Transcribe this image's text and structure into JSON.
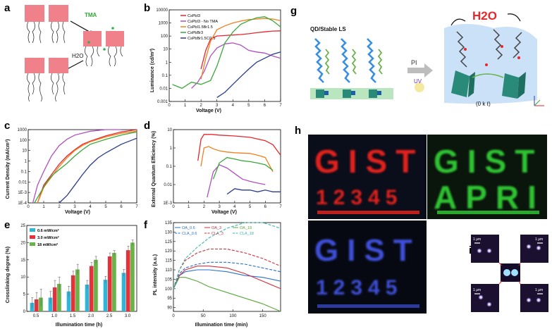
{
  "panel_labels": {
    "a": "a",
    "b": "b",
    "c": "c",
    "d": "d",
    "e": "e",
    "f": "f",
    "g": "g",
    "h": "h",
    "i": "i"
  },
  "panel_a": {
    "reagent": "TMA",
    "water": "H2O"
  },
  "panel_g": {
    "title": "QD/Stable LS",
    "pi": "PI",
    "uv": "UV",
    "water": "H2O",
    "bond": "(0 k ℓ)"
  },
  "panel_h": {
    "red": {
      "row1": "GIST",
      "row2": "12345",
      "color": "#e0241c"
    },
    "green": {
      "row1": "GIST",
      "row2": "APRI",
      "color": "#2ec332"
    },
    "blue": {
      "row1": "GIST",
      "row2": "12345",
      "color": "#3c4fd8"
    }
  },
  "panel_i": {
    "scale": "1 μm"
  },
  "colors": {
    "CsPbI3": "#e8262b",
    "CsPbI3_noTMA": "#b050c0",
    "CsPbI1.5Br1.5": "#f08020",
    "CsPbBr3": "#3aa83a",
    "CsPbBr1.5Cl1.5": "#2a3a8f"
  },
  "chart_data": [
    {
      "id": "b",
      "type": "line",
      "title": "",
      "xlabel": "Voltage (V)",
      "ylabel": "Luminance (cd/m²)",
      "xlim": [
        0,
        7
      ],
      "ylim_log": [
        0.001,
        10000
      ],
      "xticks": [
        "0",
        "1",
        "2",
        "3",
        "4",
        "5",
        "6",
        "7"
      ],
      "yticks": [
        "0.001",
        "0.01",
        "0.1",
        "1",
        "10",
        "100",
        "1000",
        "10000"
      ],
      "legend": [
        "CsPbI3",
        "CsPbI3 - No TMA",
        "CsPbI1.5Br1.5",
        "CsPbBr3",
        "CsPbBr1.5Cl1.5"
      ],
      "series": [
        {
          "name": "CsPbI3",
          "x": [
            2.0,
            2.3,
            2.6,
            3.0,
            3.5,
            4.0,
            4.5,
            5.0,
            5.5,
            6.0,
            6.5,
            7.0
          ],
          "values": [
            0.3,
            8,
            60,
            100,
            110,
            120,
            130,
            150,
            180,
            210,
            240,
            250
          ]
        },
        {
          "name": "CsPbI3 - No TMA",
          "x": [
            1.4,
            1.8,
            2.2,
            2.6,
            3.0,
            3.5,
            4.0,
            4.5,
            5.0,
            5.5,
            6.0,
            6.5,
            7.0
          ],
          "values": [
            0.01,
            0.03,
            0.2,
            3,
            12,
            25,
            30,
            20,
            8,
            6,
            5,
            3,
            2
          ]
        },
        {
          "name": "CsPbI1.5Br1.5",
          "x": [
            2.0,
            2.3,
            2.6,
            3.0,
            3.5,
            4.0,
            4.5,
            5.0,
            5.5,
            6.0,
            6.5,
            7.0
          ],
          "values": [
            0.05,
            2,
            40,
            300,
            600,
            1000,
            1400,
            1800,
            2000,
            2200,
            2000,
            1500
          ]
        },
        {
          "name": "CsPbBr3",
          "x": [
            0.2,
            0.8,
            1.4,
            2.0,
            2.6,
            3.0,
            3.5,
            4.0,
            4.5,
            5.0,
            5.5,
            6.0,
            6.5,
            7.0
          ],
          "values": [
            0.02,
            0.01,
            0.03,
            0.02,
            0.04,
            0.5,
            30,
            200,
            800,
            1500,
            2500,
            3000,
            1500,
            500
          ]
        },
        {
          "name": "CsPbBr1.5Cl1.5",
          "x": [
            3.0,
            3.5,
            4.0,
            4.5,
            5.0,
            5.5,
            6.0,
            6.5,
            7.0
          ],
          "values": [
            0.002,
            0.005,
            0.02,
            0.08,
            0.3,
            1,
            2,
            4,
            6
          ]
        }
      ]
    },
    {
      "id": "c",
      "type": "line",
      "xlabel": "Voltage (V)",
      "ylabel": "Current Density (mA/cm²)",
      "xlim": [
        0,
        7
      ],
      "ylim_log": [
        0.0001,
        1000
      ],
      "xticks": [
        "0",
        "1",
        "2",
        "3",
        "4",
        "5",
        "6",
        "7"
      ],
      "yticks": [
        "1E-4",
        "1E-3",
        "0.01",
        "0.1",
        "1",
        "10",
        "100",
        "1000"
      ],
      "series": [
        {
          "name": "CsPbI3",
          "x": [
            0.6,
            1.0,
            1.5,
            2.0,
            2.5,
            3.0,
            3.5,
            4.0,
            5.0,
            6.0,
            7.0
          ],
          "values": [
            0.0001,
            0.005,
            0.05,
            0.5,
            3,
            12,
            40,
            80,
            250,
            600,
            1000
          ]
        },
        {
          "name": "CsPbI3 - No TMA",
          "x": [
            0.3,
            0.6,
            1.0,
            1.5,
            2.0,
            2.5,
            3.0,
            4.0,
            5.0,
            6.0
          ],
          "values": [
            0.0001,
            0.005,
            0.1,
            3,
            30,
            120,
            300,
            700,
            1000,
            1000
          ]
        },
        {
          "name": "CsPbI1.5Br1.5",
          "x": [
            0.6,
            1.0,
            1.5,
            2.0,
            2.5,
            3.0,
            3.5,
            4.0,
            5.0,
            6.0,
            7.0
          ],
          "values": [
            0.0001,
            0.003,
            0.03,
            0.3,
            2,
            10,
            30,
            70,
            200,
            450,
            700
          ]
        },
        {
          "name": "CsPbBr3",
          "x": [
            0.4,
            0.8,
            1.2,
            1.6,
            2.0,
            2.5,
            3.0,
            3.5,
            4.0,
            5.0,
            6.0,
            7.0
          ],
          "values": [
            0.0001,
            0.001,
            0.01,
            0.05,
            0.15,
            0.6,
            3,
            12,
            40,
            120,
            300,
            600
          ]
        },
        {
          "name": "CsPbBr1.5Cl1.5",
          "x": [
            2.0,
            2.5,
            3.0,
            3.5,
            4.0,
            4.5,
            5.0,
            6.0,
            7.0
          ],
          "values": [
            0.0001,
            0.0005,
            0.005,
            0.05,
            0.4,
            2,
            6,
            40,
            150
          ]
        }
      ]
    },
    {
      "id": "d",
      "type": "line",
      "xlabel": "Voltage (V)",
      "ylabel": "External Quantum Efficiency (%)",
      "xlim": [
        0,
        7
      ],
      "ylim_log": [
        0.001,
        10
      ],
      "xticks": [
        "0",
        "1",
        "2",
        "3",
        "4",
        "5",
        "6",
        "7"
      ],
      "yticks": [
        "1E-3",
        "0.01",
        "0.1",
        "1",
        "10"
      ],
      "series": [
        {
          "name": "CsPbI3",
          "x": [
            1.6,
            1.8,
            2.0,
            2.5,
            3.0,
            4.0,
            5.0,
            6.0,
            6.5,
            7.0
          ],
          "values": [
            0.2,
            3,
            5.5,
            5.5,
            5,
            4.5,
            3.8,
            2.5,
            1.5,
            0.4
          ]
        },
        {
          "name": "CsPbI3 - No TMA",
          "x": [
            2.2,
            2.6,
            3.0,
            3.5,
            4.0,
            4.5,
            5.0,
            5.5,
            6.0
          ],
          "values": [
            0.002,
            0.05,
            0.12,
            0.08,
            0.04,
            0.02,
            0.015,
            0.012,
            0.01
          ]
        },
        {
          "name": "CsPbI1.5Br1.5",
          "x": [
            1.8,
            2.0,
            2.3,
            2.6,
            3.0,
            3.5,
            4.0,
            5.0,
            5.5,
            6.0,
            6.5
          ],
          "values": [
            0.1,
            1,
            1.2,
            0.9,
            0.7,
            0.6,
            0.55,
            0.5,
            0.4,
            0.3,
            0.05
          ]
        },
        {
          "name": "CsPbBr3",
          "x": [
            2.6,
            3.0,
            3.5,
            4.0,
            4.5,
            5.0,
            5.5,
            6.0,
            6.5
          ],
          "values": [
            0.02,
            0.15,
            0.3,
            0.25,
            0.2,
            0.18,
            0.15,
            0.12,
            0.06
          ]
        },
        {
          "name": "CsPbBr1.5Cl1.5",
          "x": [
            3.5,
            4.0,
            4.5,
            5.0,
            5.5,
            6.0,
            6.5,
            7.0
          ],
          "values": [
            0.003,
            0.006,
            0.005,
            0.005,
            0.004,
            0.005,
            0.004,
            0.004
          ]
        }
      ]
    },
    {
      "id": "e",
      "type": "bar",
      "xlabel": "Illumination time (h)",
      "ylabel": "Crosslinking degree (%)",
      "ylim": [
        0,
        25
      ],
      "categories": [
        "0.5",
        "1.0",
        "1.5",
        "2.0",
        "2.5",
        "3.0"
      ],
      "yticks": [
        "0",
        "5",
        "10",
        "15",
        "20",
        "25"
      ],
      "series": [
        {
          "name": "0.6 mW/cm²",
          "color": "#2fb6d6",
          "values": [
            2.5,
            4,
            5.8,
            7.8,
            9.2,
            11.2
          ],
          "err": [
            1.5,
            1.8,
            1.5,
            1.2,
            1,
            1
          ]
        },
        {
          "name": "3.0 mW/cm²",
          "color": "#e8303a",
          "values": [
            3.5,
            7,
            10.5,
            13.2,
            16,
            17.8
          ],
          "err": [
            2,
            2,
            1.2,
            1,
            1,
            1.2
          ]
        },
        {
          "name": "18 mW/cm²",
          "color": "#69b446",
          "values": [
            4,
            8,
            12.2,
            15,
            17,
            20
          ],
          "err": [
            2.5,
            2,
            1.5,
            1,
            0.7,
            0.8
          ]
        }
      ]
    },
    {
      "id": "f",
      "type": "line",
      "xlabel": "Illumination time (min)",
      "ylabel": "PL intensity (a.u.)",
      "xlim": [
        0,
        180
      ],
      "ylim": [
        88,
        135
      ],
      "xticks": [
        "0",
        "50",
        "100",
        "150"
      ],
      "yticks": [
        "90",
        "95",
        "100",
        "105",
        "110",
        "115",
        "120",
        "125",
        "130",
        "135"
      ],
      "legend": [
        "OA_0.6",
        "OA_3",
        "OA_18",
        "CLA_0.6",
        "CLA_3",
        "CLA_18"
      ],
      "series": [
        {
          "name": "OA_0.6",
          "color": "#2a6fd6",
          "dash": "",
          "x": [
            0,
            10,
            20,
            40,
            60,
            90,
            120,
            150,
            180
          ],
          "values": [
            100,
            107,
            109,
            110,
            110,
            109,
            107,
            106,
            104
          ]
        },
        {
          "name": "OA_3",
          "color": "#d4303a",
          "dash": "",
          "x": [
            0,
            10,
            20,
            40,
            60,
            90,
            120,
            150,
            180
          ],
          "values": [
            100,
            107,
            110,
            112,
            112,
            111,
            108,
            104,
            100
          ]
        },
        {
          "name": "OA_18",
          "color": "#5aa83a",
          "dash": "",
          "x": [
            0,
            10,
            20,
            40,
            60,
            90,
            120,
            150,
            180
          ],
          "values": [
            100,
            106,
            106,
            104,
            101,
            98,
            95,
            92,
            88
          ]
        },
        {
          "name": "CLA_0.6",
          "color": "#2a6fd6",
          "dash": "4 2",
          "x": [
            0,
            10,
            20,
            40,
            60,
            90,
            120,
            150,
            180
          ],
          "values": [
            100,
            108,
            111,
            113,
            114,
            114,
            113,
            111,
            109
          ]
        },
        {
          "name": "CLA_3",
          "color": "#d4303a",
          "dash": "4 2",
          "x": [
            0,
            10,
            20,
            40,
            60,
            90,
            120,
            150,
            180
          ],
          "values": [
            100,
            110,
            115,
            119,
            121,
            121,
            119,
            116,
            112
          ]
        },
        {
          "name": "CLA_18",
          "color": "#3ab8b0",
          "dash": "4 2",
          "x": [
            0,
            10,
            20,
            40,
            60,
            90,
            120,
            150,
            180
          ],
          "values": [
            100,
            110,
            116,
            122,
            127,
            132,
            135,
            135,
            132
          ]
        }
      ]
    }
  ]
}
